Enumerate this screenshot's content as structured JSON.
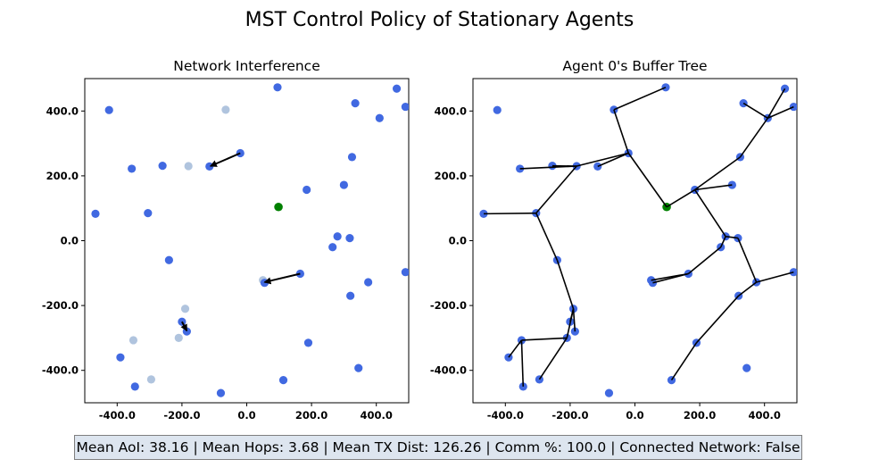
{
  "figure": {
    "title": "MST Control Policy of Stationary Agents",
    "footer": "Mean AoI: 38.16 | Mean Hops: 3.68 | Mean TX Dist: 126.26 | Comm %: 100.0 | Connected Network: False"
  },
  "colors": {
    "agent": "#4169e1",
    "faded_agent": "#b0c4de",
    "base_station": "#008000",
    "edge": "#000000",
    "footer_bg": "#dde5ef"
  },
  "chart_data": [
    {
      "type": "scatter",
      "title": "Network Interference",
      "xlim": [
        -500,
        500
      ],
      "ylim": [
        -500,
        500
      ],
      "xticks": [
        -400,
        -200,
        0,
        200,
        400
      ],
      "yticks": [
        -400,
        -200,
        0,
        200,
        400
      ],
      "xtick_labels": [
        "-400.0",
        "-200.0",
        "0.0",
        "200.0",
        "400.0"
      ],
      "ytick_labels": [
        "-400.0",
        "-200.0",
        "0.0",
        "200.0",
        "400.0"
      ],
      "grid": false,
      "agents": [
        [
          -425,
          403
        ],
        [
          95,
          473
        ],
        [
          463,
          469
        ],
        [
          -355,
          222
        ],
        [
          -260,
          231
        ],
        [
          -115,
          229
        ],
        [
          -20,
          270
        ],
        [
          335,
          424
        ],
        [
          410,
          378
        ],
        [
          490,
          413
        ],
        [
          325,
          258
        ],
        [
          185,
          157
        ],
        [
          300,
          172
        ],
        [
          -467,
          83
        ],
        [
          -305,
          85
        ],
        [
          280,
          13
        ],
        [
          318,
          8
        ],
        [
          265,
          -20
        ],
        [
          -240,
          -60
        ],
        [
          165,
          -102
        ],
        [
          55,
          -130
        ],
        [
          375,
          -128
        ],
        [
          490,
          -97
        ],
        [
          320,
          -170
        ],
        [
          -200,
          -250
        ],
        [
          -185,
          -280
        ],
        [
          -390,
          -360
        ],
        [
          190,
          -315
        ],
        [
          -345,
          -450
        ],
        [
          345,
          -393
        ],
        [
          113,
          -430
        ],
        [
          -80,
          -470
        ]
      ],
      "faded_agents": [
        [
          -65,
          404
        ],
        [
          -180,
          230
        ],
        [
          50,
          -122
        ],
        [
          -190,
          -210
        ],
        [
          -350,
          -307
        ],
        [
          -210,
          -300
        ],
        [
          -295,
          -428
        ]
      ],
      "base_station": [
        98,
        104
      ],
      "arrows": [
        {
          "from": [
            -20,
            270
          ],
          "to": [
            -112,
            230
          ]
        },
        {
          "from": [
            165,
            -102
          ],
          "to": [
            55,
            -128
          ]
        },
        {
          "from": [
            -200,
            -250
          ],
          "to": [
            -185,
            -278
          ]
        }
      ]
    },
    {
      "type": "scatter",
      "title": "Agent 0's Buffer Tree",
      "xlim": [
        -500,
        500
      ],
      "ylim": [
        -500,
        500
      ],
      "xticks": [
        -400,
        -200,
        0,
        200,
        400
      ],
      "yticks": [
        -400,
        -200,
        0,
        200,
        400
      ],
      "xtick_labels": [
        "-400.0",
        "-200.0",
        "0.0",
        "200.0",
        "400.0"
      ],
      "ytick_labels": [
        "-400.0",
        "-200.0",
        "0.0",
        "200.0",
        "400.0"
      ],
      "grid": false,
      "agents": [
        [
          -425,
          403
        ],
        [
          95,
          473
        ],
        [
          -65,
          404
        ],
        [
          463,
          469
        ],
        [
          335,
          424
        ],
        [
          410,
          378
        ],
        [
          490,
          413
        ],
        [
          -355,
          222
        ],
        [
          -255,
          231
        ],
        [
          -180,
          230
        ],
        [
          -115,
          229
        ],
        [
          -20,
          270
        ],
        [
          325,
          258
        ],
        [
          185,
          157
        ],
        [
          300,
          172
        ],
        [
          -467,
          83
        ],
        [
          -305,
          85
        ],
        [
          280,
          13
        ],
        [
          318,
          8
        ],
        [
          265,
          -20
        ],
        [
          -240,
          -60
        ],
        [
          165,
          -102
        ],
        [
          50,
          -122
        ],
        [
          55,
          -130
        ],
        [
          375,
          -128
        ],
        [
          490,
          -97
        ],
        [
          320,
          -170
        ],
        [
          -190,
          -210
        ],
        [
          -200,
          -250
        ],
        [
          -185,
          -280
        ],
        [
          -350,
          -307
        ],
        [
          -210,
          -300
        ],
        [
          -390,
          -360
        ],
        [
          190,
          -315
        ],
        [
          -345,
          -450
        ],
        [
          -295,
          -428
        ],
        [
          345,
          -393
        ],
        [
          113,
          -430
        ],
        [
          -80,
          -470
        ]
      ],
      "base_station": [
        98,
        104
      ],
      "edges": [
        [
          [
            -20,
            270
          ],
          [
            98,
            104
          ]
        ],
        [
          [
            -65,
            404
          ],
          [
            -20,
            270
          ]
        ],
        [
          [
            95,
            473
          ],
          [
            -65,
            404
          ]
        ],
        [
          [
            -180,
            230
          ],
          [
            -20,
            270
          ]
        ],
        [
          [
            -115,
            229
          ],
          [
            -20,
            270
          ]
        ],
        [
          [
            -355,
            222
          ],
          [
            -180,
            230
          ]
        ],
        [
          [
            -255,
            231
          ],
          [
            -180,
            230
          ]
        ],
        [
          [
            -305,
            85
          ],
          [
            -180,
            230
          ]
        ],
        [
          [
            -467,
            83
          ],
          [
            -305,
            85
          ]
        ],
        [
          [
            -240,
            -60
          ],
          [
            -305,
            85
          ]
        ],
        [
          [
            -190,
            -210
          ],
          [
            -240,
            -60
          ]
        ],
        [
          [
            -200,
            -250
          ],
          [
            -190,
            -210
          ]
        ],
        [
          [
            -185,
            -280
          ],
          [
            -190,
            -210
          ]
        ],
        [
          [
            -210,
            -300
          ],
          [
            -190,
            -210
          ]
        ],
        [
          [
            -350,
            -307
          ],
          [
            -210,
            -300
          ]
        ],
        [
          [
            -390,
            -360
          ],
          [
            -350,
            -307
          ]
        ],
        [
          [
            -345,
            -450
          ],
          [
            -350,
            -307
          ]
        ],
        [
          [
            -295,
            -428
          ],
          [
            -210,
            -300
          ]
        ],
        [
          [
            185,
            157
          ],
          [
            98,
            104
          ]
        ],
        [
          [
            300,
            172
          ],
          [
            185,
            157
          ]
        ],
        [
          [
            325,
            258
          ],
          [
            185,
            157
          ]
        ],
        [
          [
            410,
            378
          ],
          [
            325,
            258
          ]
        ],
        [
          [
            463,
            469
          ],
          [
            410,
            378
          ]
        ],
        [
          [
            335,
            424
          ],
          [
            410,
            378
          ]
        ],
        [
          [
            490,
            413
          ],
          [
            410,
            378
          ]
        ],
        [
          [
            280,
            13
          ],
          [
            185,
            157
          ]
        ],
        [
          [
            318,
            8
          ],
          [
            280,
            13
          ]
        ],
        [
          [
            265,
            -20
          ],
          [
            280,
            13
          ]
        ],
        [
          [
            165,
            -102
          ],
          [
            265,
            -20
          ]
        ],
        [
          [
            50,
            -122
          ],
          [
            165,
            -102
          ]
        ],
        [
          [
            55,
            -130
          ],
          [
            165,
            -102
          ]
        ],
        [
          [
            375,
            -128
          ],
          [
            318,
            8
          ]
        ],
        [
          [
            490,
            -97
          ],
          [
            375,
            -128
          ]
        ],
        [
          [
            320,
            -170
          ],
          [
            375,
            -128
          ]
        ],
        [
          [
            190,
            -315
          ],
          [
            320,
            -170
          ]
        ],
        [
          [
            113,
            -430
          ],
          [
            190,
            -315
          ]
        ]
      ]
    }
  ]
}
